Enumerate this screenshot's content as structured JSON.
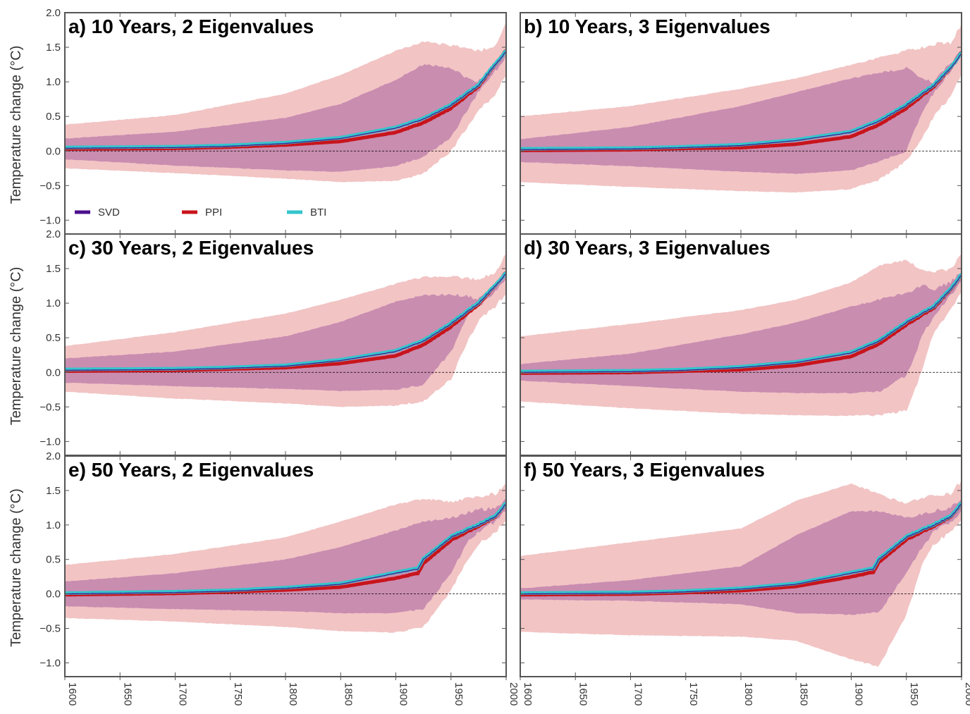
{
  "chart_data": {
    "type": "area",
    "x_range": [
      1600,
      2000
    ],
    "x_ticks": [
      1600,
      1650,
      1700,
      1750,
      1800,
      1850,
      1900,
      1950,
      2000
    ],
    "y_range": [
      -1.2,
      2.0
    ],
    "y_ticks": [
      -1.0,
      -0.5,
      0.0,
      0.5,
      1.0,
      1.5,
      2.0
    ],
    "y_tick_labels": [
      "−1.0",
      "−0.5",
      "0.0",
      "0.5",
      "1.0",
      "1.5",
      "2.0"
    ],
    "ylabel": "Temperature change (°C)",
    "zero_line": true,
    "colors": {
      "SVD": "#4b0f8c",
      "PPI": "#c8141c",
      "BTI": "#33c5cc",
      "outer_band": "#f2c4c4",
      "inner_band": "#c98db0",
      "frame": "#555555"
    },
    "legend": {
      "panel": 0,
      "placement": "bottom-left",
      "entries": [
        "SVD",
        "PPI",
        "BTI"
      ]
    },
    "panels": [
      {
        "title": "a) 10 Years, 2 Eigenvalues",
        "mean": [
          [
            1600,
            0.04
          ],
          [
            1700,
            0.05
          ],
          [
            1750,
            0.07
          ],
          [
            1800,
            0.11
          ],
          [
            1850,
            0.18
          ],
          [
            1900,
            0.33
          ],
          [
            1925,
            0.46
          ],
          [
            1950,
            0.66
          ],
          [
            1975,
            0.95
          ],
          [
            1990,
            1.25
          ],
          [
            2000,
            1.43
          ]
        ],
        "inner_band": {
          "x": [
            1600,
            1700,
            1800,
            1850,
            1900,
            1925,
            1950,
            1965,
            1975,
            1990,
            2000
          ],
          "upper": [
            0.18,
            0.28,
            0.48,
            0.68,
            1.03,
            1.25,
            1.2,
            1.05,
            1.0,
            1.28,
            1.45
          ],
          "lower": [
            -0.12,
            -0.21,
            -0.28,
            -0.3,
            -0.22,
            -0.08,
            0.2,
            0.6,
            0.85,
            1.15,
            1.38
          ]
        },
        "outer_band": {
          "x": [
            1600,
            1700,
            1800,
            1850,
            1900,
            1925,
            1950,
            1965,
            1975,
            1990,
            2000
          ],
          "upper": [
            0.38,
            0.52,
            0.83,
            1.1,
            1.45,
            1.58,
            1.53,
            1.48,
            1.45,
            1.5,
            1.85
          ],
          "lower": [
            -0.25,
            -0.32,
            -0.4,
            -0.45,
            -0.43,
            -0.33,
            0.0,
            0.35,
            0.6,
            0.8,
            1.1
          ]
        },
        "ppi_offset": [
          [
            1600,
            0
          ],
          [
            1750,
            0
          ],
          [
            1800,
            -0.01
          ],
          [
            1850,
            -0.03
          ],
          [
            1900,
            -0.05
          ],
          [
            1950,
            -0.03
          ],
          [
            1975,
            0
          ],
          [
            2000,
            0.03
          ]
        ]
      },
      {
        "title": "b) 10 Years, 3 Eigenvalues",
        "mean": [
          [
            1600,
            0.02
          ],
          [
            1700,
            0.03
          ],
          [
            1750,
            0.05
          ],
          [
            1800,
            0.08
          ],
          [
            1850,
            0.15
          ],
          [
            1900,
            0.27
          ],
          [
            1925,
            0.43
          ],
          [
            1950,
            0.66
          ],
          [
            1975,
            0.95
          ],
          [
            1990,
            1.2
          ],
          [
            2000,
            1.4
          ]
        ],
        "inner_band": {
          "x": [
            1600,
            1700,
            1800,
            1850,
            1900,
            1925,
            1950,
            1965,
            1975,
            1990,
            2000
          ],
          "upper": [
            0.17,
            0.35,
            0.65,
            0.85,
            1.05,
            1.13,
            1.2,
            1.05,
            1.0,
            1.28,
            1.45
          ],
          "lower": [
            -0.16,
            -0.22,
            -0.3,
            -0.33,
            -0.28,
            -0.15,
            0.0,
            0.6,
            0.85,
            1.15,
            1.38
          ]
        },
        "outer_band": {
          "x": [
            1600,
            1700,
            1800,
            1850,
            1900,
            1925,
            1950,
            1965,
            1975,
            1990,
            2000
          ],
          "upper": [
            0.5,
            0.65,
            0.9,
            1.05,
            1.25,
            1.35,
            1.45,
            1.5,
            1.55,
            1.55,
            1.85
          ],
          "lower": [
            -0.45,
            -0.52,
            -0.58,
            -0.6,
            -0.55,
            -0.42,
            -0.15,
            0.2,
            0.5,
            0.8,
            1.1
          ]
        },
        "ppi_offset": [
          [
            1600,
            0
          ],
          [
            1750,
            0
          ],
          [
            1800,
            -0.02
          ],
          [
            1850,
            -0.04
          ],
          [
            1900,
            -0.05
          ],
          [
            1950,
            -0.03
          ],
          [
            1975,
            0
          ],
          [
            2000,
            0.03
          ]
        ]
      },
      {
        "title": "c) 30 Years, 2 Eigenvalues",
        "mean": [
          [
            1600,
            0.03
          ],
          [
            1700,
            0.04
          ],
          [
            1750,
            0.06
          ],
          [
            1800,
            0.09
          ],
          [
            1850,
            0.17
          ],
          [
            1900,
            0.3
          ],
          [
            1925,
            0.45
          ],
          [
            1950,
            0.7
          ],
          [
            1975,
            1.0
          ],
          [
            1990,
            1.25
          ],
          [
            2000,
            1.42
          ]
        ],
        "inner_band": {
          "x": [
            1600,
            1700,
            1800,
            1850,
            1900,
            1925,
            1950,
            1965,
            1975,
            1990,
            2000
          ],
          "upper": [
            0.2,
            0.3,
            0.52,
            0.73,
            1.02,
            1.12,
            1.12,
            1.1,
            1.05,
            1.25,
            1.45
          ],
          "lower": [
            -0.15,
            -0.2,
            -0.24,
            -0.27,
            -0.25,
            -0.18,
            0.3,
            0.8,
            0.95,
            1.15,
            1.35
          ]
        },
        "outer_band": {
          "x": [
            1600,
            1700,
            1800,
            1850,
            1900,
            1925,
            1950,
            1965,
            1975,
            1990,
            2000
          ],
          "upper": [
            0.38,
            0.58,
            0.85,
            1.05,
            1.28,
            1.38,
            1.38,
            1.36,
            1.35,
            1.45,
            1.7
          ],
          "lower": [
            -0.28,
            -0.38,
            -0.45,
            -0.5,
            -0.48,
            -0.42,
            -0.1,
            0.45,
            0.75,
            0.95,
            1.15
          ]
        },
        "ppi_offset": [
          [
            1600,
            0
          ],
          [
            1750,
            0
          ],
          [
            1800,
            -0.01
          ],
          [
            1850,
            -0.03
          ],
          [
            1900,
            -0.05
          ],
          [
            1950,
            -0.03
          ],
          [
            1975,
            0
          ],
          [
            2000,
            0.03
          ]
        ]
      },
      {
        "title": "d) 30 Years, 3 Eigenvalues",
        "mean": [
          [
            1600,
            0.0
          ],
          [
            1700,
            0.01
          ],
          [
            1750,
            0.03
          ],
          [
            1800,
            0.07
          ],
          [
            1850,
            0.14
          ],
          [
            1900,
            0.28
          ],
          [
            1925,
            0.45
          ],
          [
            1950,
            0.72
          ],
          [
            1975,
            0.95
          ],
          [
            1990,
            1.2
          ],
          [
            2000,
            1.4
          ]
        ],
        "inner_band": {
          "x": [
            1600,
            1700,
            1800,
            1850,
            1900,
            1925,
            1950,
            1965,
            1975,
            1990,
            2000
          ],
          "upper": [
            0.12,
            0.27,
            0.55,
            0.72,
            0.95,
            1.05,
            1.15,
            1.25,
            1.2,
            1.3,
            1.45
          ],
          "lower": [
            -0.12,
            -0.2,
            -0.28,
            -0.3,
            -0.3,
            -0.28,
            -0.05,
            0.55,
            0.8,
            1.1,
            1.32
          ]
        },
        "outer_band": {
          "x": [
            1600,
            1700,
            1800,
            1850,
            1900,
            1925,
            1950,
            1965,
            1975,
            1990,
            2000
          ],
          "upper": [
            0.52,
            0.7,
            0.9,
            1.05,
            1.3,
            1.55,
            1.62,
            1.48,
            1.45,
            1.5,
            1.7
          ],
          "lower": [
            -0.42,
            -0.52,
            -0.6,
            -0.62,
            -0.63,
            -0.62,
            -0.55,
            0.05,
            0.6,
            0.9,
            1.15
          ]
        },
        "ppi_offset": [
          [
            1600,
            0
          ],
          [
            1750,
            0
          ],
          [
            1800,
            -0.02
          ],
          [
            1850,
            -0.03
          ],
          [
            1900,
            -0.04
          ],
          [
            1950,
            -0.02
          ],
          [
            1975,
            0
          ],
          [
            2000,
            0.02
          ]
        ]
      },
      {
        "title": "e) 50 Years, 2 Eigenvalues",
        "mean": [
          [
            1600,
            0.0
          ],
          [
            1700,
            0.02
          ],
          [
            1750,
            0.04
          ],
          [
            1800,
            0.08
          ],
          [
            1850,
            0.14
          ],
          [
            1900,
            0.3
          ],
          [
            1920,
            0.36
          ],
          [
            1925,
            0.5
          ],
          [
            1950,
            0.82
          ],
          [
            1975,
            1.0
          ],
          [
            1990,
            1.12
          ],
          [
            2000,
            1.3
          ]
        ],
        "inner_band": {
          "x": [
            1600,
            1700,
            1800,
            1850,
            1900,
            1925,
            1950,
            1965,
            1975,
            1990,
            2000
          ],
          "upper": [
            0.18,
            0.3,
            0.5,
            0.68,
            0.92,
            1.05,
            1.1,
            1.18,
            1.22,
            1.25,
            1.35
          ],
          "lower": [
            -0.18,
            -0.22,
            -0.25,
            -0.28,
            -0.28,
            -0.22,
            0.3,
            0.75,
            0.9,
            1.05,
            1.2
          ]
        },
        "outer_band": {
          "x": [
            1600,
            1700,
            1800,
            1850,
            1900,
            1925,
            1950,
            1965,
            1975,
            1990,
            2000
          ],
          "upper": [
            0.42,
            0.58,
            0.82,
            1.05,
            1.3,
            1.38,
            1.33,
            1.4,
            1.42,
            1.45,
            1.6
          ],
          "lower": [
            -0.35,
            -0.4,
            -0.48,
            -0.54,
            -0.56,
            -0.48,
            0.05,
            0.5,
            0.72,
            0.9,
            1.05
          ]
        },
        "ppi_offset": [
          [
            1600,
            0
          ],
          [
            1750,
            0
          ],
          [
            1800,
            -0.01
          ],
          [
            1850,
            -0.03
          ],
          [
            1900,
            -0.06
          ],
          [
            1950,
            -0.03
          ],
          [
            1975,
            0
          ],
          [
            2000,
            0.02
          ]
        ]
      },
      {
        "title": "f) 50 Years, 3 Eigenvalues",
        "mean": [
          [
            1600,
            0.0
          ],
          [
            1700,
            0.01
          ],
          [
            1750,
            0.03
          ],
          [
            1800,
            0.07
          ],
          [
            1850,
            0.14
          ],
          [
            1900,
            0.3
          ],
          [
            1920,
            0.36
          ],
          [
            1925,
            0.5
          ],
          [
            1950,
            0.82
          ],
          [
            1975,
            1.0
          ],
          [
            1990,
            1.12
          ],
          [
            2000,
            1.3
          ]
        ],
        "inner_band": {
          "x": [
            1600,
            1700,
            1800,
            1850,
            1900,
            1925,
            1950,
            1965,
            1975,
            1990,
            2000
          ],
          "upper": [
            0.08,
            0.2,
            0.4,
            0.85,
            1.2,
            1.2,
            1.1,
            1.15,
            1.2,
            1.25,
            1.35
          ],
          "lower": [
            -0.08,
            -0.1,
            -0.15,
            -0.28,
            -0.3,
            -0.27,
            0.3,
            0.7,
            0.9,
            1.05,
            1.2
          ]
        },
        "outer_band": {
          "x": [
            1600,
            1700,
            1800,
            1850,
            1900,
            1925,
            1950,
            1965,
            1975,
            1990,
            2000
          ],
          "upper": [
            0.55,
            0.75,
            0.95,
            1.35,
            1.6,
            1.45,
            1.3,
            1.4,
            1.42,
            1.45,
            1.65
          ],
          "lower": [
            -0.55,
            -0.6,
            -0.62,
            -0.68,
            -0.95,
            -1.05,
            -0.3,
            0.45,
            0.72,
            0.9,
            1.05
          ]
        },
        "ppi_offset": [
          [
            1600,
            0
          ],
          [
            1750,
            0
          ],
          [
            1800,
            -0.01
          ],
          [
            1850,
            -0.02
          ],
          [
            1900,
            -0.04
          ],
          [
            1950,
            -0.02
          ],
          [
            1975,
            0
          ],
          [
            2000,
            0.02
          ]
        ]
      }
    ]
  }
}
